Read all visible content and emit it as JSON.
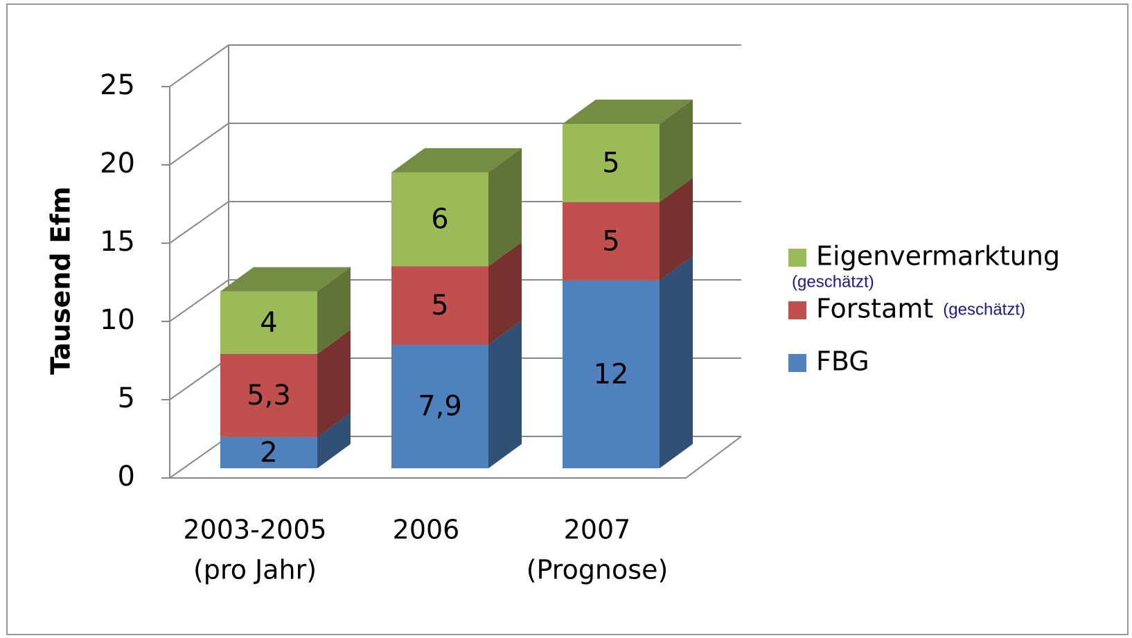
{
  "chart_data": {
    "type": "bar3d-stacked",
    "categories": [
      [
        "2003-2005",
        "(pro Jahr)"
      ],
      [
        "2006"
      ],
      [
        "2007",
        "(Prognose)"
      ]
    ],
    "ylabel": "Tausend Efm",
    "ylim": [
      0,
      25
    ],
    "yticks": [
      0,
      5,
      10,
      15,
      20,
      25
    ],
    "grid": true,
    "legend": "right",
    "series": [
      {
        "name": "FBG",
        "color": "#4f81bd",
        "values": [
          2,
          7.9,
          12
        ],
        "value_labels": [
          "2",
          "7,9",
          "12"
        ]
      },
      {
        "name": "Forstamt",
        "note": "(geschätzt)",
        "color": "#c0504d",
        "values": [
          5.3,
          5,
          5
        ],
        "value_labels": [
          "5,3",
          "5",
          "5"
        ]
      },
      {
        "name": "Eigenvermarktung",
        "note": "(geschätzt)",
        "color": "#9bbb59",
        "values": [
          4,
          6,
          5
        ],
        "value_labels": [
          "4",
          "6",
          "5"
        ]
      }
    ]
  }
}
